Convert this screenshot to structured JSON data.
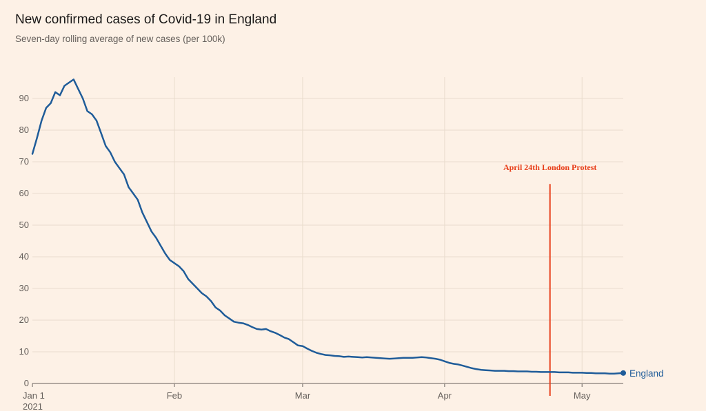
{
  "header": {
    "title": "New confirmed cases of Covid-19 in England",
    "subtitle": "Seven-day rolling average of new cases (per 100k)"
  },
  "colors": {
    "background": "#fdf1e6",
    "line": "#1f5c99",
    "grid": "#e9dccd",
    "annotation": "#e8401c",
    "axis_text": "#66605c"
  },
  "chart_data": {
    "type": "line",
    "title": "New confirmed cases of Covid-19 in England",
    "subtitle": "Seven-day rolling average of new cases (per 100k)",
    "xlabel": "",
    "ylabel": "",
    "ylim": [
      0,
      95
    ],
    "xlim": [
      "2021-01-01",
      "2021-05-10"
    ],
    "grid": true,
    "yticks": [
      0,
      10,
      20,
      30,
      40,
      50,
      60,
      70,
      80,
      90
    ],
    "xticks": [
      {
        "date": "2021-01-01",
        "label": "Jan 1",
        "sublabel": "2021"
      },
      {
        "date": "2021-02-01",
        "label": "Feb",
        "sublabel": ""
      },
      {
        "date": "2021-03-01",
        "label": "Mar",
        "sublabel": ""
      },
      {
        "date": "2021-04-01",
        "label": "Apr",
        "sublabel": ""
      },
      {
        "date": "2021-05-01",
        "label": "May",
        "sublabel": ""
      }
    ],
    "series": [
      {
        "name": "England",
        "x": [
          "2021-01-01",
          "2021-01-02",
          "2021-01-03",
          "2021-01-04",
          "2021-01-05",
          "2021-01-06",
          "2021-01-07",
          "2021-01-08",
          "2021-01-09",
          "2021-01-10",
          "2021-01-11",
          "2021-01-12",
          "2021-01-13",
          "2021-01-14",
          "2021-01-15",
          "2021-01-16",
          "2021-01-17",
          "2021-01-18",
          "2021-01-19",
          "2021-01-20",
          "2021-01-21",
          "2021-01-22",
          "2021-01-23",
          "2021-01-24",
          "2021-01-25",
          "2021-01-26",
          "2021-01-27",
          "2021-01-28",
          "2021-01-29",
          "2021-01-30",
          "2021-01-31",
          "2021-02-01",
          "2021-02-02",
          "2021-02-03",
          "2021-02-04",
          "2021-02-05",
          "2021-02-06",
          "2021-02-07",
          "2021-02-08",
          "2021-02-09",
          "2021-02-10",
          "2021-02-11",
          "2021-02-12",
          "2021-02-13",
          "2021-02-14",
          "2021-02-15",
          "2021-02-16",
          "2021-02-17",
          "2021-02-18",
          "2021-02-19",
          "2021-02-20",
          "2021-02-21",
          "2021-02-22",
          "2021-02-23",
          "2021-02-24",
          "2021-02-25",
          "2021-02-26",
          "2021-02-27",
          "2021-02-28",
          "2021-03-01",
          "2021-03-02",
          "2021-03-03",
          "2021-03-04",
          "2021-03-05",
          "2021-03-06",
          "2021-03-07",
          "2021-03-08",
          "2021-03-09",
          "2021-03-10",
          "2021-03-11",
          "2021-03-12",
          "2021-03-13",
          "2021-03-14",
          "2021-03-15",
          "2021-03-16",
          "2021-03-17",
          "2021-03-18",
          "2021-03-19",
          "2021-03-20",
          "2021-03-21",
          "2021-03-22",
          "2021-03-23",
          "2021-03-24",
          "2021-03-25",
          "2021-03-26",
          "2021-03-27",
          "2021-03-28",
          "2021-03-29",
          "2021-03-30",
          "2021-03-31",
          "2021-04-01",
          "2021-04-02",
          "2021-04-03",
          "2021-04-04",
          "2021-04-05",
          "2021-04-06",
          "2021-04-07",
          "2021-04-08",
          "2021-04-09",
          "2021-04-10",
          "2021-04-11",
          "2021-04-12",
          "2021-04-13",
          "2021-04-14",
          "2021-04-15",
          "2021-04-16",
          "2021-04-17",
          "2021-04-18",
          "2021-04-19",
          "2021-04-20",
          "2021-04-21",
          "2021-04-22",
          "2021-04-23",
          "2021-04-24",
          "2021-04-25",
          "2021-04-26",
          "2021-04-27",
          "2021-04-28",
          "2021-04-29",
          "2021-04-30",
          "2021-05-01",
          "2021-05-02",
          "2021-05-03",
          "2021-05-04",
          "2021-05-05",
          "2021-05-06",
          "2021-05-07",
          "2021-05-08",
          "2021-05-09",
          "2021-05-10"
        ],
        "values": [
          72.5,
          77.5,
          83,
          87,
          88.5,
          92,
          91,
          94,
          95,
          96,
          93,
          90,
          86,
          85,
          83,
          79,
          75,
          73,
          70,
          68,
          66,
          62,
          60,
          58,
          54,
          51,
          48,
          46,
          43.5,
          41,
          39,
          38,
          37,
          35.5,
          33,
          31.5,
          30,
          28.5,
          27.5,
          26,
          24,
          23,
          21.5,
          20.5,
          19.5,
          19.2,
          19,
          18.5,
          17.8,
          17.2,
          17,
          17.2,
          16.5,
          16,
          15.3,
          14.5,
          14,
          13,
          12,
          11.8,
          11,
          10.3,
          9.7,
          9.3,
          9,
          8.9,
          8.7,
          8.6,
          8.4,
          8.5,
          8.4,
          8.3,
          8.2,
          8.3,
          8.2,
          8.1,
          8.0,
          7.9,
          7.8,
          7.9,
          8.0,
          8.1,
          8.1,
          8.1,
          8.2,
          8.3,
          8.2,
          8.0,
          7.8,
          7.5,
          7.0,
          6.5,
          6.2,
          6.0,
          5.6,
          5.2,
          4.8,
          4.5,
          4.3,
          4.2,
          4.1,
          4.0,
          4.0,
          4.0,
          3.9,
          3.9,
          3.8,
          3.8,
          3.8,
          3.7,
          3.7,
          3.6,
          3.6,
          3.6,
          3.6,
          3.5,
          3.5,
          3.5,
          3.4,
          3.4,
          3.4,
          3.3,
          3.3,
          3.2,
          3.2,
          3.2,
          3.1,
          3.1,
          3.2,
          3.3
        ],
        "end_label": "England"
      }
    ],
    "annotations": [
      {
        "date": "2021-04-24",
        "label": "April 24th London Protest",
        "y_top": 63
      }
    ]
  }
}
